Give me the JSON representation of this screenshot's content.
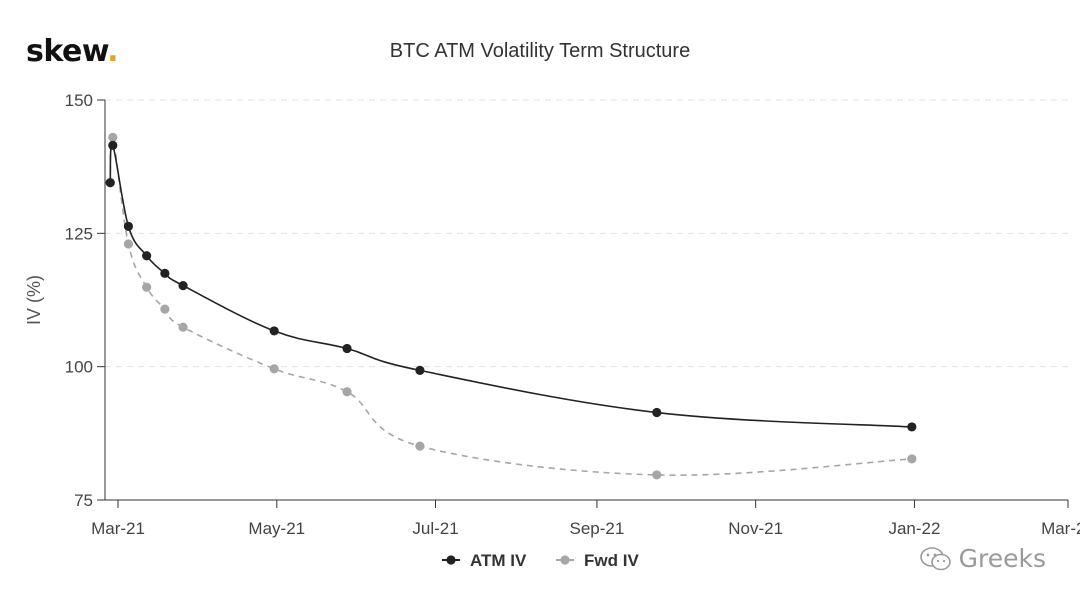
{
  "header": {
    "logo_text": "skew",
    "logo_dot": ".",
    "logo_dot_color": "#e2a22b"
  },
  "chart_data": {
    "type": "line",
    "title": "BTC ATM Volatility Term Structure",
    "xlabel": "",
    "ylabel": "IV (%)",
    "ylim": [
      75,
      150
    ],
    "yticks": [
      75,
      100,
      125,
      150
    ],
    "xlim": [
      "2021-02-24",
      "2022-03-01"
    ],
    "xticks": [
      {
        "date": "2021-03-01",
        "label": "Mar-21"
      },
      {
        "date": "2021-05-01",
        "label": "May-21"
      },
      {
        "date": "2021-07-01",
        "label": "Jul-21"
      },
      {
        "date": "2021-09-01",
        "label": "Sep-21"
      },
      {
        "date": "2021-11-01",
        "label": "Nov-21"
      },
      {
        "date": "2022-01-01",
        "label": "Jan-22"
      },
      {
        "date": "2022-03-01",
        "label": "Mar-22"
      }
    ],
    "grid": "horizontal dashed",
    "legend_position": "bottom-center",
    "series": [
      {
        "name": "ATM IV",
        "color": "#222222",
        "dashed": false,
        "points": [
          {
            "x": "2021-02-26",
            "y": 134.5
          },
          {
            "x": "2021-02-27",
            "y": 141.5
          },
          {
            "x": "2021-03-05",
            "y": 126.3
          },
          {
            "x": "2021-03-12",
            "y": 120.8
          },
          {
            "x": "2021-03-19",
            "y": 117.5
          },
          {
            "x": "2021-03-26",
            "y": 115.2
          },
          {
            "x": "2021-04-30",
            "y": 106.7
          },
          {
            "x": "2021-05-28",
            "y": 103.4
          },
          {
            "x": "2021-06-25",
            "y": 99.3
          },
          {
            "x": "2021-09-24",
            "y": 91.4
          },
          {
            "x": "2021-12-31",
            "y": 88.7
          }
        ]
      },
      {
        "name": "Fwd IV",
        "color": "#a6a6a6",
        "dashed": true,
        "points": [
          {
            "x": "2021-02-26",
            "y": 134.5
          },
          {
            "x": "2021-02-27",
            "y": 143.0
          },
          {
            "x": "2021-03-05",
            "y": 123.0
          },
          {
            "x": "2021-03-12",
            "y": 114.9
          },
          {
            "x": "2021-03-19",
            "y": 110.8
          },
          {
            "x": "2021-03-26",
            "y": 107.4
          },
          {
            "x": "2021-04-30",
            "y": 99.6
          },
          {
            "x": "2021-05-28",
            "y": 95.3
          },
          {
            "x": "2021-06-25",
            "y": 85.1
          },
          {
            "x": "2021-09-24",
            "y": 79.7
          },
          {
            "x": "2021-12-31",
            "y": 82.7
          }
        ]
      }
    ]
  },
  "watermark": {
    "icon": "wechat-icon",
    "text": "Greeks"
  }
}
